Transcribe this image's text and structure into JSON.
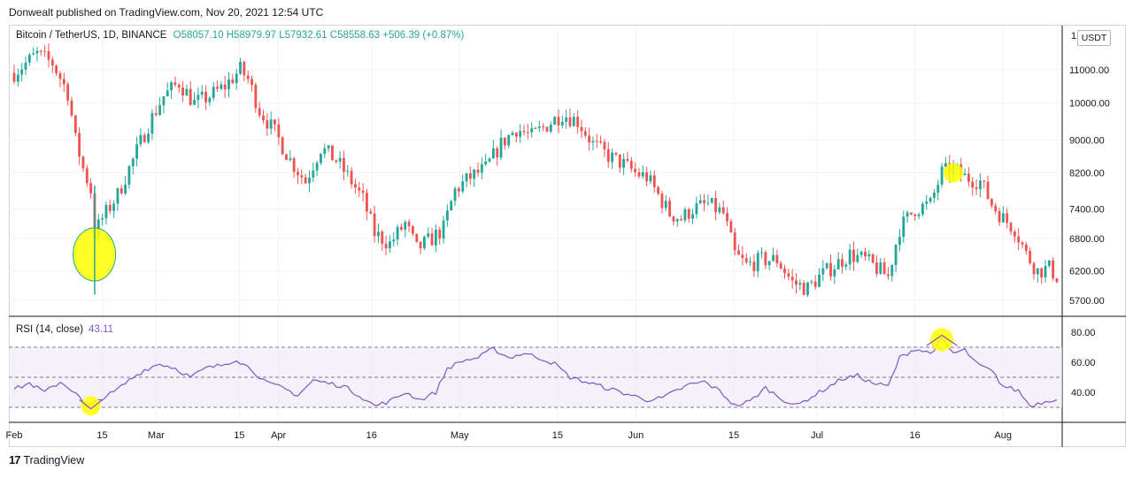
{
  "header": {
    "published": "Donwealt published on TradingView.com, Nov 20, 2021 12:54 UTC"
  },
  "legend": {
    "symbol": "Bitcoin / TetherUS, 1D, BINANCE",
    "ohlc": "O58057.10  H58979.97  L57932.61  C58558.63  +506.39 (+0.87%)"
  },
  "currency": "USDT",
  "rsi_legend": {
    "label": "RSI (14, close)",
    "value": "43.11"
  },
  "footer": {
    "brand": "TradingView"
  },
  "colors": {
    "up": "#26a69a",
    "down": "#ef5350",
    "rsi_line": "#7e57c2",
    "rsi_band": "#ede7f6",
    "highlight": "#ffff00",
    "grid": "#f0f3fa",
    "axis_text": "#131722"
  },
  "chart_data": [
    {
      "type": "candlestick",
      "title": "Bitcoin / TetherUS, 1D, BINANCE",
      "price_scale": "log",
      "x_ticks": [
        "Feb",
        "15",
        "Mar",
        "15",
        "Apr",
        "16",
        "May",
        "15",
        "Jun",
        "15",
        "Jul",
        "16",
        "Aug"
      ],
      "y_ticks": [
        "11000.00",
        "10000.00",
        "9000.00",
        "8200.00",
        "7400.00",
        "6800.00",
        "6200.00",
        "5700.00"
      ],
      "y_tick_values": [
        11000,
        10000,
        9000,
        8200,
        7400,
        6800,
        6200,
        5700
      ],
      "top_axis_label_partial": "1",
      "close_path": [
        [
          0,
          10900
        ],
        [
          6,
          11500
        ],
        [
          10,
          11200
        ],
        [
          14,
          10300
        ],
        [
          16,
          9000
        ],
        [
          18,
          8300
        ],
        [
          20,
          7800
        ],
        [
          21,
          6900
        ],
        [
          23,
          7200
        ],
        [
          27,
          7700
        ],
        [
          31,
          8500
        ],
        [
          35,
          9400
        ],
        [
          39,
          10200
        ],
        [
          43,
          10600
        ],
        [
          47,
          10000
        ],
        [
          51,
          10200
        ],
        [
          55,
          10500
        ],
        [
          59,
          11000
        ],
        [
          61,
          10700
        ],
        [
          64,
          9800
        ],
        [
          68,
          9200
        ],
        [
          72,
          8500
        ],
        [
          76,
          8000
        ],
        [
          80,
          8800
        ],
        [
          84,
          8500
        ],
        [
          88,
          8000
        ],
        [
          91,
          7600
        ],
        [
          94,
          6900
        ],
        [
          98,
          6700
        ],
        [
          102,
          7100
        ],
        [
          105,
          6600
        ],
        [
          109,
          6800
        ],
        [
          112,
          7000
        ],
        [
          115,
          7800
        ],
        [
          119,
          8100
        ],
        [
          123,
          8300
        ],
        [
          127,
          8900
        ],
        [
          131,
          9300
        ],
        [
          135,
          9100
        ],
        [
          139,
          9400
        ],
        [
          143,
          9700
        ],
        [
          147,
          9500
        ],
        [
          151,
          8900
        ],
        [
          155,
          8600
        ],
        [
          159,
          8400
        ],
        [
          162,
          8200
        ],
        [
          165,
          8100
        ],
        [
          168,
          7700
        ],
        [
          171,
          7300
        ],
        [
          174,
          7200
        ],
        [
          177,
          7400
        ],
        [
          181,
          7500
        ],
        [
          185,
          7300
        ],
        [
          188,
          6500
        ],
        [
          191,
          6300
        ],
        [
          195,
          6400
        ],
        [
          199,
          6400
        ],
        [
          203,
          6000
        ],
        [
          207,
          5900
        ],
        [
          210,
          6100
        ],
        [
          214,
          6300
        ],
        [
          218,
          6500
        ],
        [
          222,
          6400
        ],
        [
          226,
          6200
        ],
        [
          228,
          6100
        ],
        [
          231,
          7000
        ],
        [
          235,
          7400
        ],
        [
          239,
          7500
        ],
        [
          242,
          8200
        ],
        [
          245,
          8300
        ],
        [
          248,
          8100
        ],
        [
          252,
          8000
        ],
        [
          255,
          7500
        ],
        [
          258,
          7200
        ],
        [
          261,
          7000
        ],
        [
          264,
          6500
        ],
        [
          267,
          6200
        ],
        [
          270,
          6250
        ],
        [
          272,
          6100
        ]
      ],
      "highlights": [
        "Feb low candle wick",
        "late-July high candles"
      ]
    },
    {
      "type": "line",
      "title": "RSI (14, close)",
      "series": [
        {
          "name": "RSI (14, close)",
          "last_value": 43.11
        }
      ],
      "y_ticks": [
        "80.00",
        "60.00",
        "40.00"
      ],
      "y_tick_values": [
        80,
        60,
        40
      ],
      "band_levels": [
        30,
        70
      ],
      "mid_level": 50,
      "rsi_path": [
        [
          0,
          42
        ],
        [
          4,
          46
        ],
        [
          8,
          40
        ],
        [
          12,
          47
        ],
        [
          16,
          40
        ],
        [
          18,
          33
        ],
        [
          20,
          31
        ],
        [
          22,
          35
        ],
        [
          26,
          40
        ],
        [
          30,
          48
        ],
        [
          34,
          55
        ],
        [
          38,
          59
        ],
        [
          42,
          56
        ],
        [
          46,
          50
        ],
        [
          50,
          56
        ],
        [
          54,
          58
        ],
        [
          58,
          62
        ],
        [
          62,
          55
        ],
        [
          66,
          46
        ],
        [
          70,
          43
        ],
        [
          74,
          38
        ],
        [
          78,
          48
        ],
        [
          82,
          46
        ],
        [
          86,
          44
        ],
        [
          90,
          38
        ],
        [
          94,
          31
        ],
        [
          98,
          34
        ],
        [
          102,
          40
        ],
        [
          106,
          35
        ],
        [
          110,
          40
        ],
        [
          113,
          56
        ],
        [
          117,
          61
        ],
        [
          121,
          63
        ],
        [
          125,
          69
        ],
        [
          129,
          63
        ],
        [
          133,
          66
        ],
        [
          137,
          63
        ],
        [
          141,
          59
        ],
        [
          145,
          50
        ],
        [
          149,
          47
        ],
        [
          153,
          44
        ],
        [
          157,
          41
        ],
        [
          161,
          38
        ],
        [
          165,
          35
        ],
        [
          169,
          36
        ],
        [
          172,
          40
        ],
        [
          176,
          45
        ],
        [
          180,
          47
        ],
        [
          184,
          41
        ],
        [
          188,
          31
        ],
        [
          192,
          34
        ],
        [
          196,
          43
        ],
        [
          200,
          36
        ],
        [
          204,
          31
        ],
        [
          208,
          37
        ],
        [
          212,
          43
        ],
        [
          216,
          49
        ],
        [
          220,
          51
        ],
        [
          224,
          46
        ],
        [
          228,
          44
        ],
        [
          231,
          63
        ],
        [
          235,
          69
        ],
        [
          239,
          66
        ],
        [
          242,
          75
        ],
        [
          245,
          66
        ],
        [
          248,
          68
        ],
        [
          251,
          59
        ],
        [
          255,
          54
        ],
        [
          258,
          44
        ],
        [
          262,
          41
        ],
        [
          265,
          31
        ],
        [
          269,
          34
        ],
        [
          272,
          36
        ]
      ]
    }
  ]
}
